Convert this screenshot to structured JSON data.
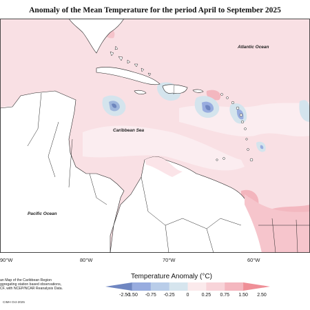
{
  "title": "Anomaly of the Mean Temperature for the period April to September 2025",
  "labels": {
    "atlantic": "Atlantic Ocean",
    "caribbean": "Caribbean Sea",
    "pacific": "Pacific Ocean"
  },
  "longitude_ticks": [
    "90°W",
    "80°W",
    "70°W",
    "60°W"
  ],
  "legend": {
    "title": "Temperature Anomaly (°C)",
    "levels": [
      "-2.50",
      "-1.50",
      "-0.75",
      "-0.25",
      "0",
      "0.25",
      "0.75",
      "1.50",
      "2.50"
    ],
    "colors": [
      "#6f86c1",
      "#98acdf",
      "#b9cde9",
      "#d6e5ee",
      "#fbeaec",
      "#f8d4d9",
      "#f4b7bf",
      "#ef8f97"
    ]
  },
  "notes": [
    "an Map of the Caribbean Region",
    "ggregating station based observations,",
    "CF, with NCEP/NCAR Reanalysis Data."
  ],
  "credit": "CIMH Oct-2025"
}
